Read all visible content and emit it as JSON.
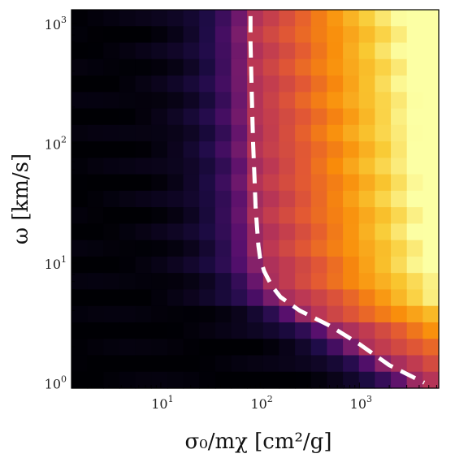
{
  "chart_data": {
    "type": "heatmap",
    "title": "",
    "xlabel": "σ₀/mχ [cm²/g]",
    "ylabel": "ω [km/s]",
    "x_scale": "log",
    "y_scale": "log",
    "xlim": [
      1.26,
      6300
    ],
    "ylim": [
      0.9,
      1300
    ],
    "x_ticks": [
      {
        "value": 10,
        "base": "10",
        "exp": "1"
      },
      {
        "value": 100,
        "base": "10",
        "exp": "2"
      },
      {
        "value": 1000,
        "base": "10",
        "exp": "3"
      }
    ],
    "y_ticks": [
      {
        "value": 1,
        "base": "10",
        "exp": "0"
      },
      {
        "value": 10,
        "base": "10",
        "exp": "1"
      },
      {
        "value": 100,
        "base": "10",
        "exp": "2"
      },
      {
        "value": 1000,
        "base": "10",
        "exp": "3"
      }
    ],
    "grid": false,
    "colormap": "inferno",
    "colorbar": false,
    "n_cols": 23,
    "n_rows": 23,
    "boundary_line": {
      "style": "dashed",
      "color": "#ffffff",
      "x": [
        80,
        80,
        82,
        85,
        88,
        90,
        93,
        96,
        100,
        110,
        130,
        160,
        250,
        500,
        1000,
        2000,
        4500
      ],
      "y": [
        1150,
        700,
        300,
        100,
        50,
        30,
        20,
        14,
        11,
        8.5,
        6.5,
        5.2,
        4.0,
        3.0,
        2.1,
        1.4,
        1.0
      ]
    }
  }
}
